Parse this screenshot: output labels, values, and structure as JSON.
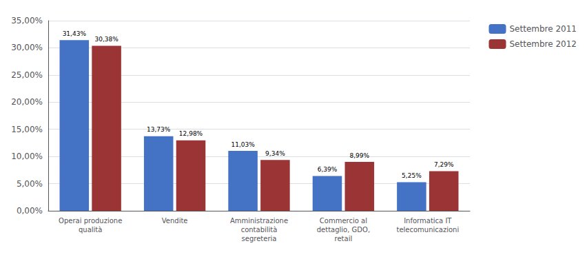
{
  "chart_data": {
    "type": "bar",
    "categories": [
      "Operai produzione\nqualità",
      "Vendite",
      "Amministrazione\ncontabilità\nsegreteria",
      "Commercio al\ndettaglio, GDO,\nretail",
      "Informatica IT\ntelecomunicazioni"
    ],
    "series": [
      {
        "name": "Settembre 2011",
        "color": "#4472C4",
        "values": [
          31.43,
          13.73,
          11.03,
          6.39,
          5.25
        ],
        "value_labels": [
          "31,43%",
          "13,73%",
          "11,03%",
          "6,39%",
          "5,25%"
        ]
      },
      {
        "name": "Settembre 2012",
        "color": "#9B3535",
        "values": [
          30.38,
          12.98,
          9.34,
          8.99,
          7.29
        ],
        "value_labels": [
          "30,38%",
          "12,98%",
          "9,34%",
          "8,99%",
          "7,29%"
        ]
      }
    ],
    "ylim": [
      0,
      35
    ],
    "yticks": [
      {
        "value": 0,
        "label": "0,00%"
      },
      {
        "value": 5,
        "label": "5,00%"
      },
      {
        "value": 10,
        "label": "10,00%"
      },
      {
        "value": 15,
        "label": "15,00%"
      },
      {
        "value": 20,
        "label": "20,00%"
      },
      {
        "value": 25,
        "label": "25,00%"
      },
      {
        "value": 30,
        "label": "30,00%"
      },
      {
        "value": 35,
        "label": "35,00%"
      }
    ],
    "grid": true,
    "legend": "right",
    "data_labels": true
  }
}
